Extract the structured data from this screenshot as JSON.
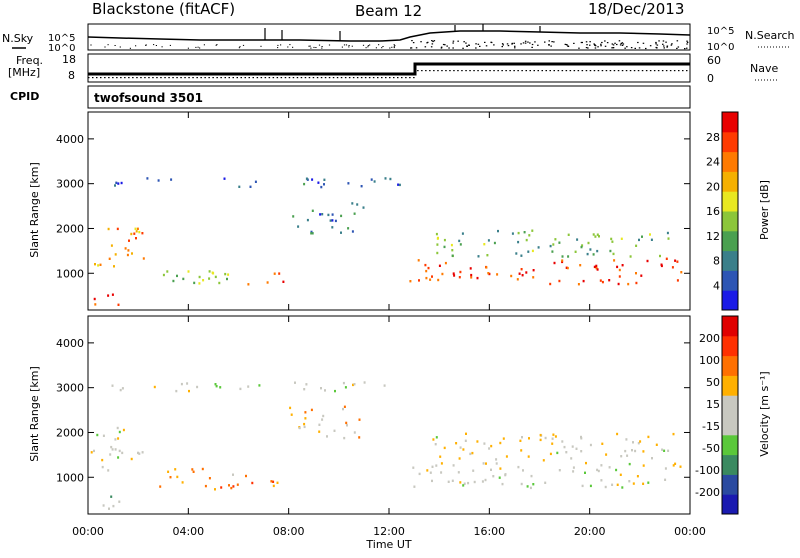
{
  "header": {
    "station": "Blackstone (fitACF)",
    "beam": "Beam 12",
    "date": "18/Dec/2013"
  },
  "noise_panel": {
    "left_label": "N.Sky",
    "right_label": "N.Search",
    "ticks": [
      "10^5",
      "10^0"
    ]
  },
  "freq_panel": {
    "left_label_1": "Freq.",
    "left_label_2": "[MHz]",
    "right_label": "Nave",
    "left_ticks": [
      "18",
      "8"
    ],
    "right_ticks": [
      "60",
      "0"
    ]
  },
  "cpid": {
    "label": "CPID",
    "value": "twofsound 3501"
  },
  "x_axis": {
    "label": "Time UT",
    "ticks": [
      "00:00",
      "04:00",
      "08:00",
      "12:00",
      "16:00",
      "20:00",
      "00:00"
    ]
  },
  "chart_data": [
    {
      "type": "heatmap",
      "name": "power",
      "ylabel": "Slant Range [km]",
      "yticks": [
        "4000",
        "3000",
        "2000",
        "1000"
      ],
      "ylim": [
        180,
        4600
      ],
      "xlim_hours": [
        0,
        24
      ],
      "colorbar_label": "Power [dB]",
      "colorbar_ticks": [
        "28",
        "24",
        "20",
        "16",
        "12",
        "8",
        "4"
      ],
      "colorbar_colors": [
        "#1a1ae6",
        "#2d55b4",
        "#3a7f8a",
        "#4aa050",
        "#8cc63a",
        "#e8e820",
        "#f5b000",
        "#ff7a00",
        "#ff3a00",
        "#e80000"
      ],
      "regions": [
        {
          "t0": 0.1,
          "t1": 2.2,
          "r0": 1150,
          "r1": 2150,
          "c": 0.75
        },
        {
          "t0": 0.2,
          "t1": 1.4,
          "r0": 250,
          "r1": 600,
          "c": 0.85
        },
        {
          "t0": 2.8,
          "t1": 6.3,
          "r0": 750,
          "r1": 1250,
          "c": 0.45
        },
        {
          "t0": 6.3,
          "t1": 7.8,
          "r0": 750,
          "r1": 1050,
          "c": 0.8
        },
        {
          "t0": 8.0,
          "t1": 11.0,
          "r0": 1900,
          "r1": 2600,
          "c": 0.2
        },
        {
          "t0": 12.8,
          "t1": 23.8,
          "r0": 780,
          "r1": 1350,
          "c": 0.9
        },
        {
          "t0": 13.5,
          "t1": 23.5,
          "r0": 1400,
          "r1": 2000,
          "c": 0.35
        },
        {
          "t0": 0.5,
          "t1": 12.5,
          "r0": 2950,
          "r1": 3150,
          "c": 0.15
        }
      ]
    },
    {
      "type": "heatmap",
      "name": "velocity",
      "ylabel": "Slant Range [km]",
      "yticks": [
        "4000",
        "3000",
        "2000",
        "1000"
      ],
      "ylim": [
        180,
        4600
      ],
      "xlim_hours": [
        0,
        24
      ],
      "colorbar_label": "Velocity [m s⁻¹]",
      "colorbar_ticks": [
        "200",
        "100",
        "50",
        "15",
        "-15",
        "-50",
        "-100",
        "-200"
      ],
      "colorbar_colors": [
        "#1a1ab0",
        "#2a4aa0",
        "#3a8a60",
        "#5ac83a",
        "#c8c8c0",
        "#c8c8c0",
        "#ffb000",
        "#ff7000",
        "#ff3000",
        "#e00000"
      ],
      "regions": [
        {
          "t0": 0.1,
          "t1": 2.2,
          "r0": 1150,
          "r1": 2150,
          "c": 0.5
        },
        {
          "t0": 0.2,
          "t1": 1.4,
          "r0": 250,
          "r1": 600,
          "c": 0.4
        },
        {
          "t0": 2.8,
          "t1": 6.3,
          "r0": 750,
          "r1": 1250,
          "c": 0.7
        },
        {
          "t0": 6.3,
          "t1": 7.8,
          "r0": 750,
          "r1": 1050,
          "c": 0.72
        },
        {
          "t0": 8.0,
          "t1": 11.0,
          "r0": 1900,
          "r1": 2600,
          "c": 0.6
        },
        {
          "t0": 12.8,
          "t1": 23.8,
          "r0": 780,
          "r1": 1350,
          "c": 0.5
        },
        {
          "t0": 13.5,
          "t1": 23.5,
          "r0": 1400,
          "r1": 2000,
          "c": 0.55
        },
        {
          "t0": 0.5,
          "t1": 12.5,
          "r0": 2950,
          "r1": 3150,
          "c": 0.5
        }
      ]
    }
  ]
}
